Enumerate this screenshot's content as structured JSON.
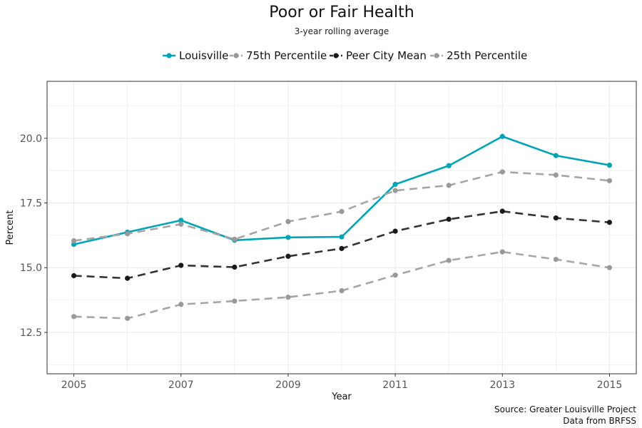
{
  "chart_data": {
    "type": "line",
    "title": "Poor or Fair Health",
    "subtitle": "3-year rolling average",
    "xlabel": "Year",
    "ylabel": "Percent",
    "caption_line1": "Source: Greater Louisville Project",
    "caption_line2": "Data from BRFSS",
    "x": [
      2005,
      2006,
      2007,
      2008,
      2009,
      2010,
      2011,
      2012,
      2013,
      2014,
      2015
    ],
    "xticks": [
      "2005",
      "2007",
      "2009",
      "2011",
      "2013",
      "2015"
    ],
    "yticks": [
      "12.5",
      "15.0",
      "17.5",
      "20.0"
    ],
    "xlim": [
      2004.5,
      2015.5
    ],
    "ylim": [
      10.9,
      22.2
    ],
    "grid": true,
    "legend_position": "top",
    "series": [
      {
        "name": "Louisville",
        "color": "#00a5b8",
        "dashed": false,
        "points_color": "#00a5b8",
        "values": [
          15.9,
          16.37,
          16.83,
          16.06,
          16.17,
          16.19,
          18.22,
          18.94,
          20.07,
          19.33,
          18.96
        ]
      },
      {
        "name": "75th Percentile",
        "color": "#a6a6a6",
        "dashed": true,
        "points_color": "#999999",
        "values": [
          16.04,
          16.31,
          16.68,
          16.1,
          16.78,
          17.17,
          17.98,
          18.18,
          18.7,
          18.58,
          18.36
        ]
      },
      {
        "name": "Peer City Mean",
        "color": "#333333",
        "dashed": true,
        "points_color": "#1a1a1a",
        "values": [
          14.69,
          14.59,
          15.09,
          15.02,
          15.44,
          15.74,
          16.41,
          16.87,
          17.18,
          16.92,
          16.75
        ]
      },
      {
        "name": "25th Percentile",
        "color": "#a6a6a6",
        "dashed": true,
        "points_color": "#999999",
        "values": [
          13.11,
          13.04,
          13.58,
          13.71,
          13.86,
          14.11,
          14.71,
          15.28,
          15.61,
          15.32,
          15.0
        ]
      }
    ]
  }
}
